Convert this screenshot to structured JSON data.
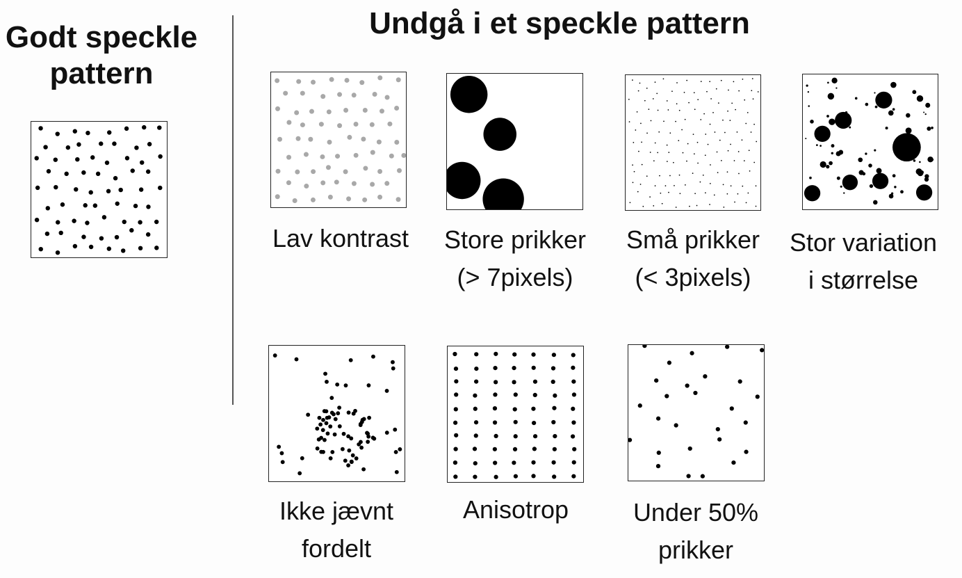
{
  "good": {
    "title_line1": "Godt speckle",
    "title_line2": "pattern"
  },
  "bad": {
    "title": "Undgå i et speckle pattern",
    "panels": [
      {
        "id": "low-contrast",
        "caption_line1": "Lav kontrast",
        "caption_line2": ""
      },
      {
        "id": "large-dots",
        "caption_line1": "Store prikker",
        "caption_line2": "(> 7pixels)"
      },
      {
        "id": "small-dots",
        "caption_line1": "Små prikker",
        "caption_line2": "(< 3pixels)"
      },
      {
        "id": "size-variation",
        "caption_line1": "Stor variation",
        "caption_line2": "i størrelse"
      },
      {
        "id": "uneven",
        "caption_line1": "Ikke jævnt",
        "caption_line2": "fordelt"
      },
      {
        "id": "anisotropic",
        "caption_line1": "Anisotrop",
        "caption_line2": ""
      },
      {
        "id": "sparse",
        "caption_line1": "Under 50%",
        "caption_line2": "prikker"
      }
    ]
  },
  "colors": {
    "dot": "#000000",
    "low_contrast_dot": "#a8a8a8",
    "border": "#222222"
  }
}
